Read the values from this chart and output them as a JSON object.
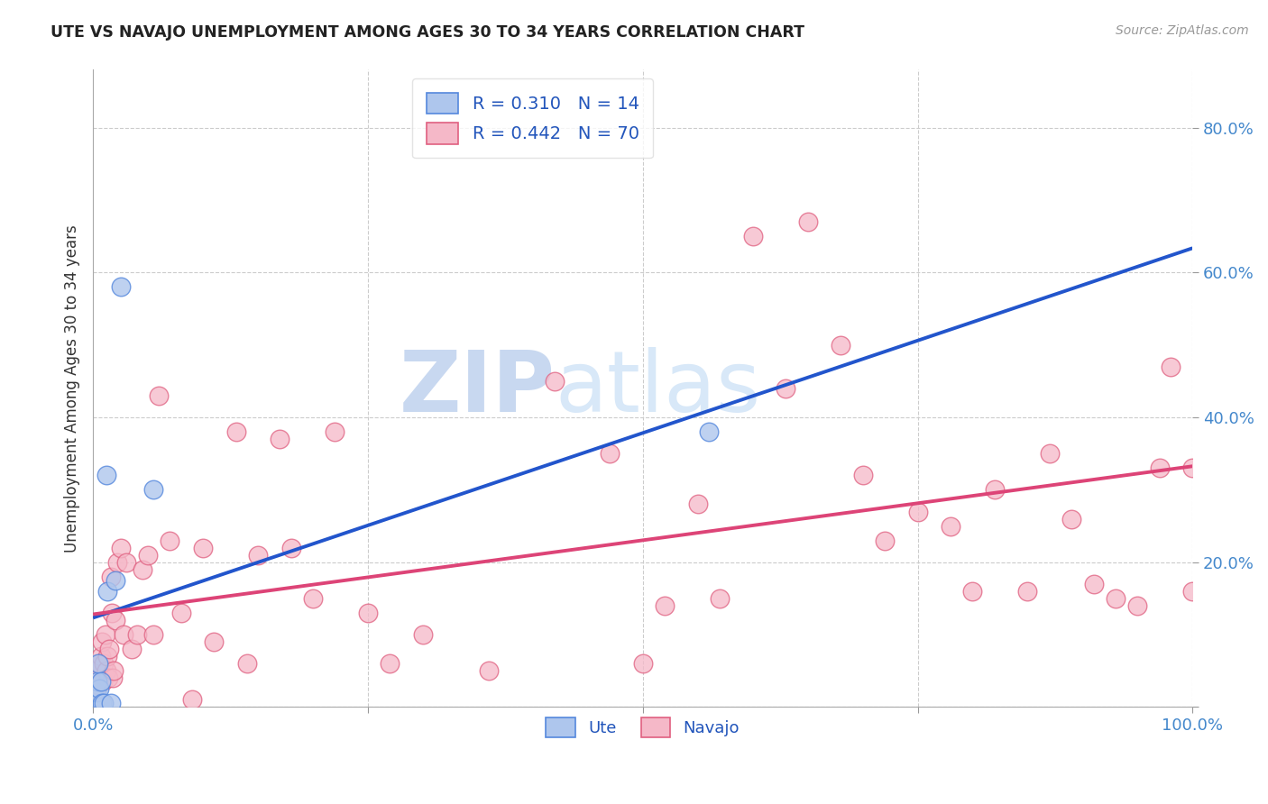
{
  "title": "UTE VS NAVAJO UNEMPLOYMENT AMONG AGES 30 TO 34 YEARS CORRELATION CHART",
  "source": "Source: ZipAtlas.com",
  "ylabel": "Unemployment Among Ages 30 to 34 years",
  "xlim": [
    0,
    1
  ],
  "ylim": [
    0,
    0.88
  ],
  "xtick_vals": [
    0.0,
    0.25,
    0.5,
    0.75,
    1.0
  ],
  "xtick_labels": [
    "0.0%",
    "",
    "",
    "",
    "100.0%"
  ],
  "ytick_vals": [
    0.0,
    0.2,
    0.4,
    0.6,
    0.8
  ],
  "ytick_labels": [
    "",
    "20.0%",
    "40.0%",
    "60.0%",
    "80.0%"
  ],
  "ute_color": "#aec6ed",
  "navajo_color": "#f5b8c8",
  "ute_edge_color": "#5588dd",
  "navajo_edge_color": "#e06080",
  "ute_line_color": "#2255cc",
  "navajo_line_color": "#dd4477",
  "ute_R": 0.31,
  "ute_N": 14,
  "navajo_R": 0.442,
  "navajo_N": 70,
  "ute_scatter_x": [
    0.003,
    0.004,
    0.005,
    0.006,
    0.007,
    0.008,
    0.01,
    0.012,
    0.013,
    0.016,
    0.02,
    0.025,
    0.055,
    0.56
  ],
  "ute_scatter_y": [
    0.02,
    0.035,
    0.06,
    0.025,
    0.035,
    0.005,
    0.005,
    0.32,
    0.16,
    0.005,
    0.175,
    0.58,
    0.3,
    0.38
  ],
  "navajo_scatter_x": [
    0.003,
    0.004,
    0.005,
    0.006,
    0.007,
    0.008,
    0.009,
    0.01,
    0.011,
    0.012,
    0.013,
    0.014,
    0.015,
    0.016,
    0.017,
    0.018,
    0.019,
    0.02,
    0.022,
    0.025,
    0.028,
    0.03,
    0.035,
    0.04,
    0.045,
    0.05,
    0.055,
    0.06,
    0.07,
    0.08,
    0.09,
    0.1,
    0.11,
    0.13,
    0.14,
    0.15,
    0.17,
    0.18,
    0.2,
    0.22,
    0.25,
    0.27,
    0.3,
    0.36,
    0.42,
    0.47,
    0.5,
    0.52,
    0.55,
    0.57,
    0.6,
    0.63,
    0.65,
    0.68,
    0.7,
    0.72,
    0.75,
    0.78,
    0.8,
    0.82,
    0.85,
    0.87,
    0.89,
    0.91,
    0.93,
    0.95,
    0.97,
    0.98,
    1.0,
    1.0
  ],
  "navajo_scatter_y": [
    0.04,
    0.05,
    0.03,
    0.06,
    0.07,
    0.09,
    0.035,
    0.06,
    0.1,
    0.05,
    0.07,
    0.04,
    0.08,
    0.18,
    0.13,
    0.04,
    0.05,
    0.12,
    0.2,
    0.22,
    0.1,
    0.2,
    0.08,
    0.1,
    0.19,
    0.21,
    0.1,
    0.43,
    0.23,
    0.13,
    0.01,
    0.22,
    0.09,
    0.38,
    0.06,
    0.21,
    0.37,
    0.22,
    0.15,
    0.38,
    0.13,
    0.06,
    0.1,
    0.05,
    0.45,
    0.35,
    0.06,
    0.14,
    0.28,
    0.15,
    0.65,
    0.44,
    0.67,
    0.5,
    0.32,
    0.23,
    0.27,
    0.25,
    0.16,
    0.3,
    0.16,
    0.35,
    0.26,
    0.17,
    0.15,
    0.14,
    0.33,
    0.47,
    0.33,
    0.16
  ],
  "background_color": "#ffffff",
  "grid_color": "#cccccc",
  "title_color": "#222222",
  "axis_tick_color": "#4488cc",
  "legend_label_color": "#2255bb",
  "watermark_zip_color": "#c8d8f0",
  "watermark_atlas_color": "#d8e8f8"
}
